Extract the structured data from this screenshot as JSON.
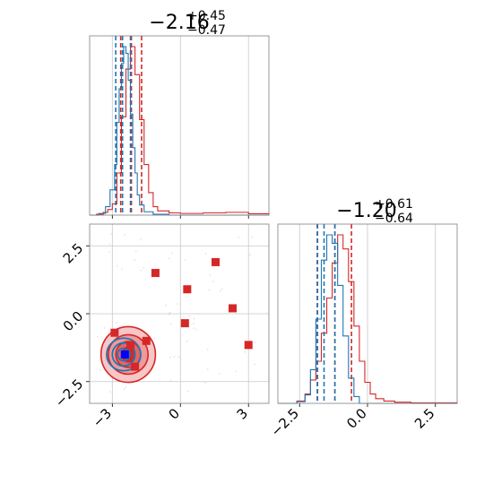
{
  "colors": {
    "series_a": "#d62728",
    "series_b": "#1f77b4",
    "marker_special": "#0000ff",
    "grid": "#c8c8c8",
    "frame": "#808080"
  },
  "titles": {
    "p1": {
      "main": "−2.16",
      "sup": "+0.45",
      "sub": "−0.47"
    },
    "p2": {
      "main": "−1.20",
      "sup": "+0.61",
      "sub": "−0.64"
    }
  },
  "ticks": {
    "x1": {
      "values": [
        -3,
        0,
        3
      ],
      "labels": [
        "−3",
        "0",
        "3"
      ]
    },
    "y2d": {
      "values": [
        -2.5,
        0.0,
        2.5
      ],
      "labels": [
        "−2.5",
        "0.0",
        "2.5"
      ]
    },
    "x2": {
      "values": [
        -2.5,
        0.0,
        2.5
      ],
      "labels": [
        "−2.5",
        "0.0",
        "2.5"
      ]
    }
  },
  "chart_data": [
    {
      "type": "line",
      "panel": "marginal-param-1",
      "xlim": [
        -4.0,
        3.9
      ],
      "grid": true,
      "series": [
        {
          "color": "#d62728",
          "x": [
            -4.0,
            -3.7,
            -3.4,
            -3.2,
            -3.0,
            -2.8,
            -2.6,
            -2.4,
            -2.2,
            -2.0,
            -1.8,
            -1.6,
            -1.4,
            -1.2,
            -1.0,
            -0.5,
            0.0,
            1.0,
            2.0,
            3.0,
            3.9
          ],
          "y": [
            0.0,
            0.003,
            0.01,
            0.02,
            0.04,
            0.15,
            0.35,
            0.52,
            0.6,
            0.5,
            0.34,
            0.18,
            0.08,
            0.03,
            0.015,
            0.008,
            0.006,
            0.008,
            0.01,
            0.005,
            0.0
          ],
          "quantiles": [
            -2.63,
            -2.16,
            -1.71
          ]
        },
        {
          "color": "#1f77b4",
          "x": [
            -4.0,
            -3.6,
            -3.3,
            -3.1,
            -2.9,
            -2.8,
            -2.7,
            -2.6,
            -2.5,
            -2.4,
            -2.3,
            -2.2,
            -2.1,
            -2.0,
            -1.9,
            -1.8,
            -1.6,
            -1.2,
            -0.5,
            3.9
          ],
          "y": [
            0.0,
            0.01,
            0.05,
            0.15,
            0.3,
            0.55,
            0.75,
            0.9,
            1.0,
            0.96,
            0.8,
            0.6,
            0.4,
            0.25,
            0.12,
            0.06,
            0.02,
            0.005,
            0.0,
            0.0
          ],
          "quantiles": [
            -2.85,
            -2.55,
            -2.2
          ]
        }
      ]
    },
    {
      "type": "scatter",
      "panel": "joint-2d",
      "xlim": [
        -4.0,
        3.9
      ],
      "ylim": [
        -3.3,
        3.3
      ],
      "grid": true,
      "contours": [
        {
          "color": "#d62728",
          "center": [
            -2.3,
            -1.5
          ],
          "radii": [
            [
              2.4,
              2.05
            ],
            [
              1.75,
              1.45
            ],
            [
              1.1,
              0.95
            ],
            [
              0.55,
              0.55
            ]
          ]
        },
        {
          "color": "#1f77b4",
          "center": [
            -2.5,
            -1.5
          ],
          "radii": [
            [
              1.5,
              1.2
            ],
            [
              1.0,
              0.85
            ],
            [
              0.55,
              0.45
            ]
          ]
        }
      ],
      "markers": [
        {
          "x": -1.1,
          "y": 1.5
        },
        {
          "x": 0.3,
          "y": 0.9
        },
        {
          "x": 1.55,
          "y": 1.9
        },
        {
          "x": 2.3,
          "y": 0.2
        },
        {
          "x": 0.2,
          "y": -0.35
        },
        {
          "x": 3.0,
          "y": -1.15
        },
        {
          "x": -2.9,
          "y": -0.7
        },
        {
          "x": -2.2,
          "y": -1.15
        },
        {
          "x": -1.5,
          "y": -1.0
        },
        {
          "x": -2.0,
          "y": -1.95
        }
      ],
      "special_marker": {
        "x": -2.45,
        "y": -1.5
      }
    },
    {
      "type": "line",
      "panel": "marginal-param-2",
      "xlim": [
        -3.3,
        3.3
      ],
      "grid": true,
      "series": [
        {
          "color": "#d62728",
          "x": [
            -3.3,
            -2.6,
            -2.3,
            -2.1,
            -1.9,
            -1.7,
            -1.5,
            -1.3,
            -1.1,
            -0.9,
            -0.7,
            -0.5,
            -0.3,
            -0.1,
            0.1,
            0.3,
            0.6,
            1.0,
            1.6,
            3.3
          ],
          "y": [
            0.0,
            0.01,
            0.04,
            0.1,
            0.18,
            0.3,
            0.45,
            0.6,
            0.72,
            0.66,
            0.52,
            0.33,
            0.18,
            0.09,
            0.04,
            0.02,
            0.01,
            0.005,
            0.002,
            0.0
          ],
          "quantiles": [
            -1.84,
            -1.2,
            -0.59
          ]
        },
        {
          "color": "#1f77b4",
          "x": [
            -3.3,
            -2.6,
            -2.3,
            -2.1,
            -1.9,
            -1.7,
            -1.5,
            -1.3,
            -1.1,
            -0.9,
            -0.7,
            -0.5,
            -0.3,
            3.3
          ],
          "y": [
            0.0,
            0.01,
            0.05,
            0.2,
            0.5,
            0.85,
            1.0,
            0.95,
            0.7,
            0.4,
            0.15,
            0.04,
            0.0,
            0.0
          ],
          "quantiles": [
            -1.85,
            -1.6,
            -1.2
          ]
        }
      ]
    }
  ]
}
